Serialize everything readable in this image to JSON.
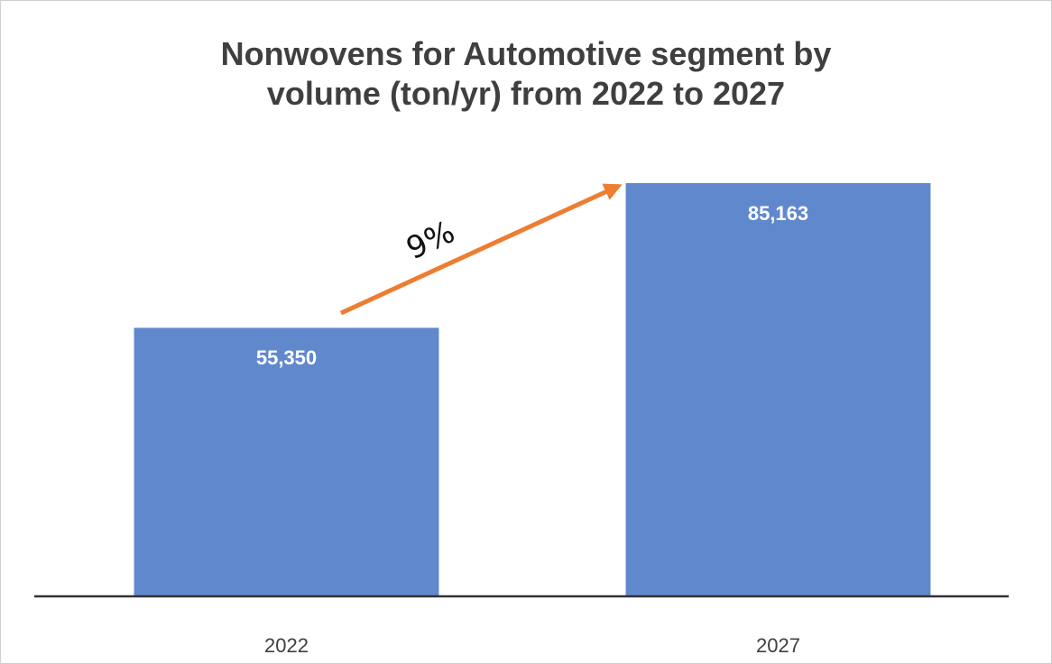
{
  "chart_data": {
    "type": "bar",
    "title": "Nonwovens for Automotive segment by volume (ton/yr) from 2022 to 2027",
    "categories": [
      "2022",
      "2027"
    ],
    "values": [
      55350,
      85163
    ],
    "value_labels": [
      "55,350",
      "85,163"
    ],
    "color": "#6088cc",
    "ylim": [
      0,
      90000
    ],
    "annotation": "9%",
    "annotation_color": "#ed7d31"
  }
}
